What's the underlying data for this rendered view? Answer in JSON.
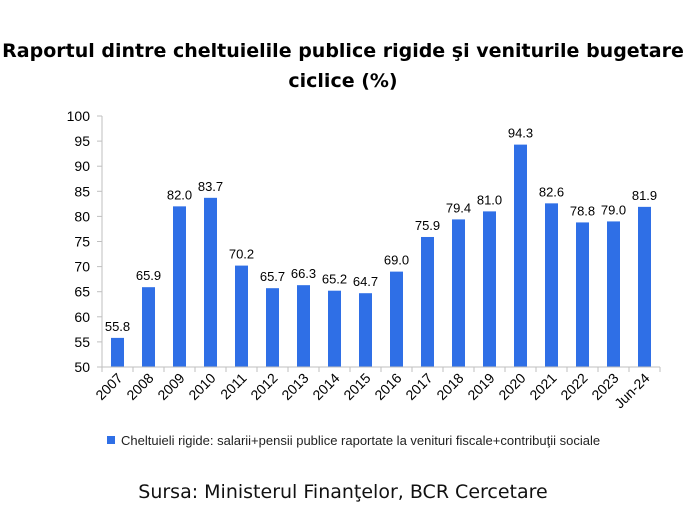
{
  "title_line1": "Raportul dintre cheltuielile publice rigide şi veniturile bugetare",
  "title_line2": "ciclice (%)",
  "source": "Sursa: Ministerul Finanţelor, BCR Cercetare",
  "colors": {
    "bar": "#2f6fe6",
    "axis": "#bfbfbf",
    "text": "#000000"
  },
  "chart_data": {
    "type": "bar",
    "categories": [
      "2007",
      "2008",
      "2009",
      "2010",
      "2011",
      "2012",
      "2013",
      "2014",
      "2015",
      "2016",
      "2017",
      "2018",
      "2019",
      "2020",
      "2021",
      "2022",
      "2023",
      "Jun-24"
    ],
    "series": [
      {
        "name": "Cheltuieli rigide: salarii+pensii publice raportate la venituri fiscale+contribuţii sociale",
        "values": [
          55.8,
          65.9,
          82.0,
          83.7,
          70.2,
          65.7,
          66.3,
          65.2,
          64.7,
          69.0,
          75.9,
          79.4,
          81.0,
          94.3,
          82.6,
          78.8,
          79.0,
          81.9
        ],
        "labels": [
          "55.8",
          "65.9",
          "82.0",
          "83.7",
          "70.2",
          "65.7",
          "66.3",
          "65.2",
          "64.7",
          "69.0",
          "75.9",
          "79.4",
          "81.0",
          "94.3",
          "82.6",
          "78.8",
          "79.0",
          "81.9"
        ]
      }
    ],
    "ylim": [
      50,
      100
    ],
    "yticks": [
      50,
      55,
      60,
      65,
      70,
      75,
      80,
      85,
      90,
      95,
      100
    ],
    "legend_position": "bottom",
    "grid": false
  }
}
